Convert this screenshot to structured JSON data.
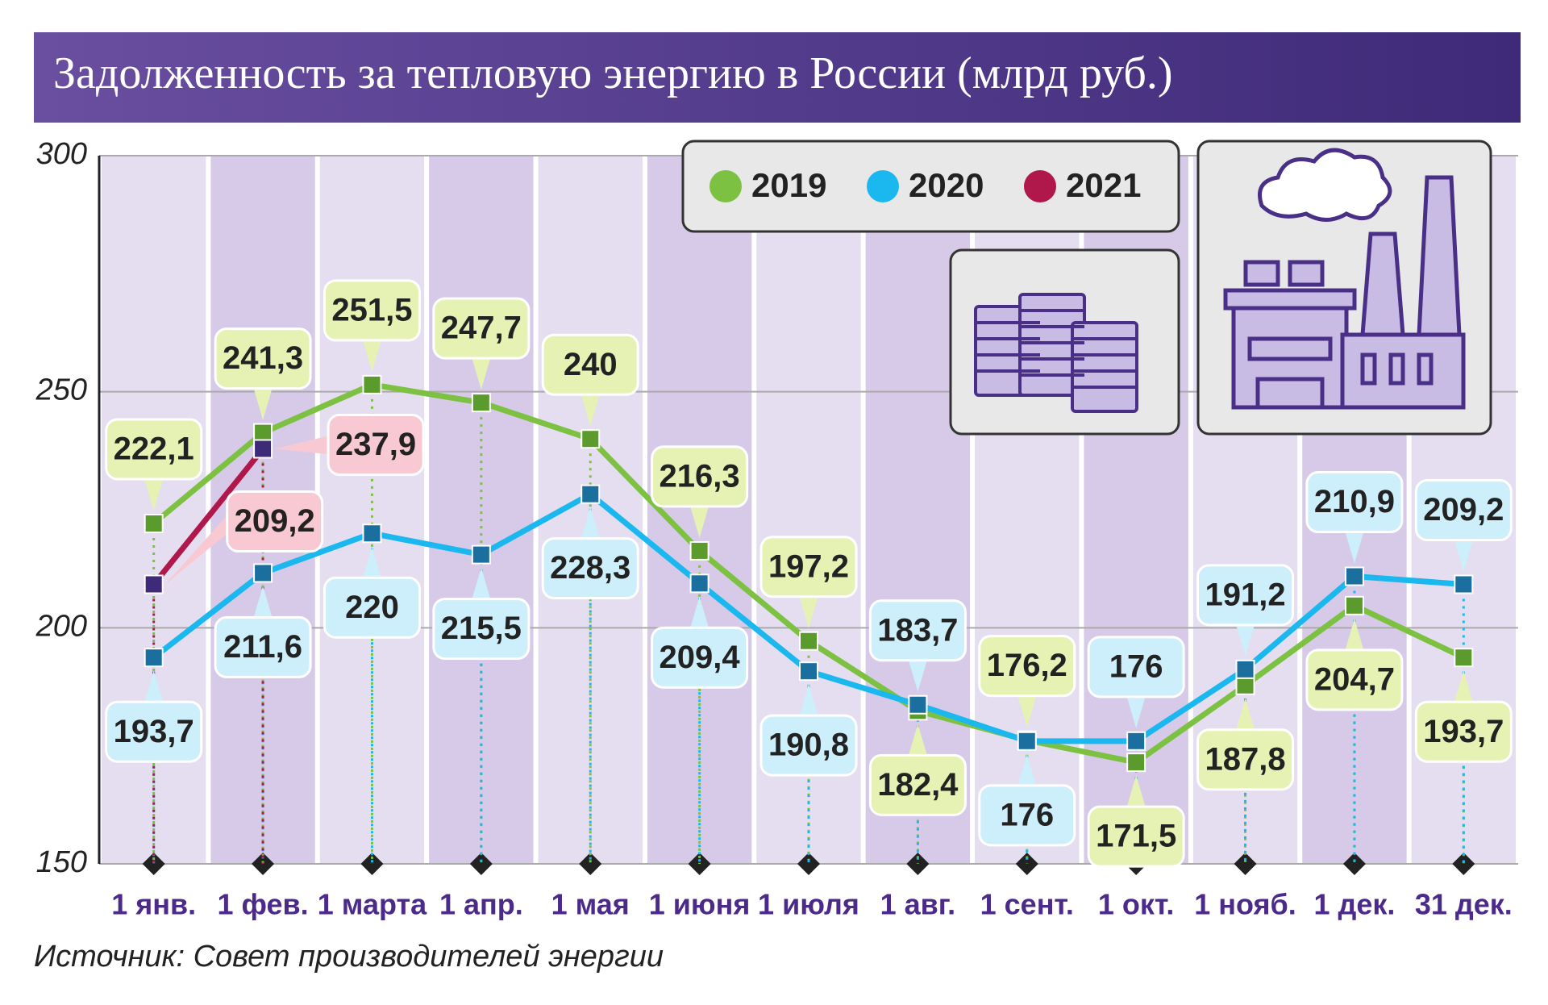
{
  "chart_data": {
    "type": "line",
    "title": "Задолженность за тепловую энергию в России (млрд руб.)",
    "source": "Источник: Совет производителей энергии",
    "categories": [
      "1 янв.",
      "1 фев.",
      "1 марта",
      "1 апр.",
      "1 мая",
      "1 июня",
      "1 июля",
      "1 авг.",
      "1 сент.",
      "1 окт.",
      "1 нояб.",
      "1 дек.",
      "31 дек."
    ],
    "ylim": [
      150,
      300
    ],
    "yticks": [
      150,
      200,
      250,
      300
    ],
    "grid": true,
    "legend": "top-right",
    "series": [
      {
        "name": "2019",
        "color": "#7dc142",
        "marker_color": "#5b9a2c",
        "label_color": "#e6f2b4",
        "values": [
          222.1,
          241.3,
          251.5,
          247.7,
          240,
          216.3,
          197.2,
          182.4,
          176.2,
          171.5,
          187.8,
          204.7,
          193.7
        ],
        "value_labels": [
          "222,1",
          "241,3",
          "251,5",
          "247,7",
          "240",
          "216,3",
          "197,2",
          "182,4",
          "176,2",
          "171,5",
          "187,8",
          "204,7",
          "193,7"
        ]
      },
      {
        "name": "2020",
        "color": "#1ab8ee",
        "marker_color": "#1b6f9e",
        "label_color": "#cdeefb",
        "values": [
          193.7,
          211.6,
          220,
          215.5,
          228.3,
          209.4,
          190.8,
          183.7,
          176,
          176,
          191.2,
          210.9,
          209.2
        ],
        "value_labels": [
          "193,7",
          "211,6",
          "220",
          "215,5",
          "228,3",
          "209,4",
          "190,8",
          "183,7",
          "176",
          "176",
          "191,2",
          "210,9",
          "209,2"
        ]
      },
      {
        "name": "2021",
        "color": "#b0174a",
        "marker_color": "#3d2a78",
        "label_color": "#f8c9d2",
        "values": [
          209.2,
          237.9,
          null,
          null,
          null,
          null,
          null,
          null,
          null,
          null,
          null,
          null,
          null
        ],
        "value_labels": [
          "209,2",
          "237,9",
          null,
          null,
          null,
          null,
          null,
          null,
          null,
          null,
          null,
          null,
          null
        ]
      }
    ]
  }
}
